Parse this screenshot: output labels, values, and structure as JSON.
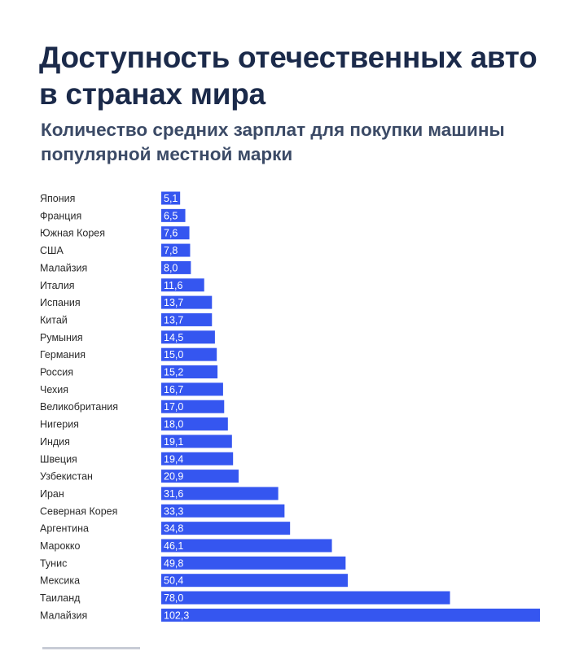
{
  "header": {
    "title": "Доступность отечественных авто в странах мира",
    "subtitle": "Количество средних зарплат для покупки машины популярной местной марки"
  },
  "colors": {
    "bar": "#3556f0",
    "title": "#1b2a4a",
    "subtitle": "#3b4a66",
    "background": "#ffffff"
  },
  "chart_data": {
    "type": "bar",
    "orientation": "horizontal",
    "title": "Доступность отечественных авто в странах мира",
    "subtitle": "Количество средних зарплат для покупки машины популярной местной марки",
    "xlabel": "",
    "ylabel": "",
    "grid": false,
    "legend": "none",
    "xlim": [
      0,
      102.3
    ],
    "categories": [
      "Япония",
      "Франция",
      "Южная Корея",
      "США",
      "Малайзия",
      "Италия",
      "Испания",
      "Китай",
      "Румыния",
      "Германия",
      "Россия",
      "Чехия",
      "Великобритания",
      "Нигерия",
      "Индия",
      "Швеция",
      "Узбекистан",
      "Иран",
      "Северная Корея",
      "Аргентина",
      "Марокко",
      "Тунис",
      "Мексика",
      "Таиланд",
      "Малайзия"
    ],
    "values": [
      5.1,
      6.5,
      7.6,
      7.8,
      8.0,
      11.6,
      13.7,
      13.7,
      14.5,
      15.0,
      15.2,
      16.7,
      17.0,
      18.0,
      19.1,
      19.4,
      20.9,
      31.6,
      33.3,
      34.8,
      46.1,
      49.8,
      50.4,
      78.0,
      102.3
    ],
    "value_labels": [
      "5,1",
      "6,5",
      "7,6",
      "7,8",
      "8,0",
      "11,6",
      "13,7",
      "13,7",
      "14,5",
      "15,0",
      "15,2",
      "16,7",
      "17,0",
      "18,0",
      "19,1",
      "19,4",
      "20,9",
      "31,6",
      "33,3",
      "34,8",
      "46,1",
      "49,8",
      "50,4",
      "78,0",
      "102,3"
    ]
  }
}
